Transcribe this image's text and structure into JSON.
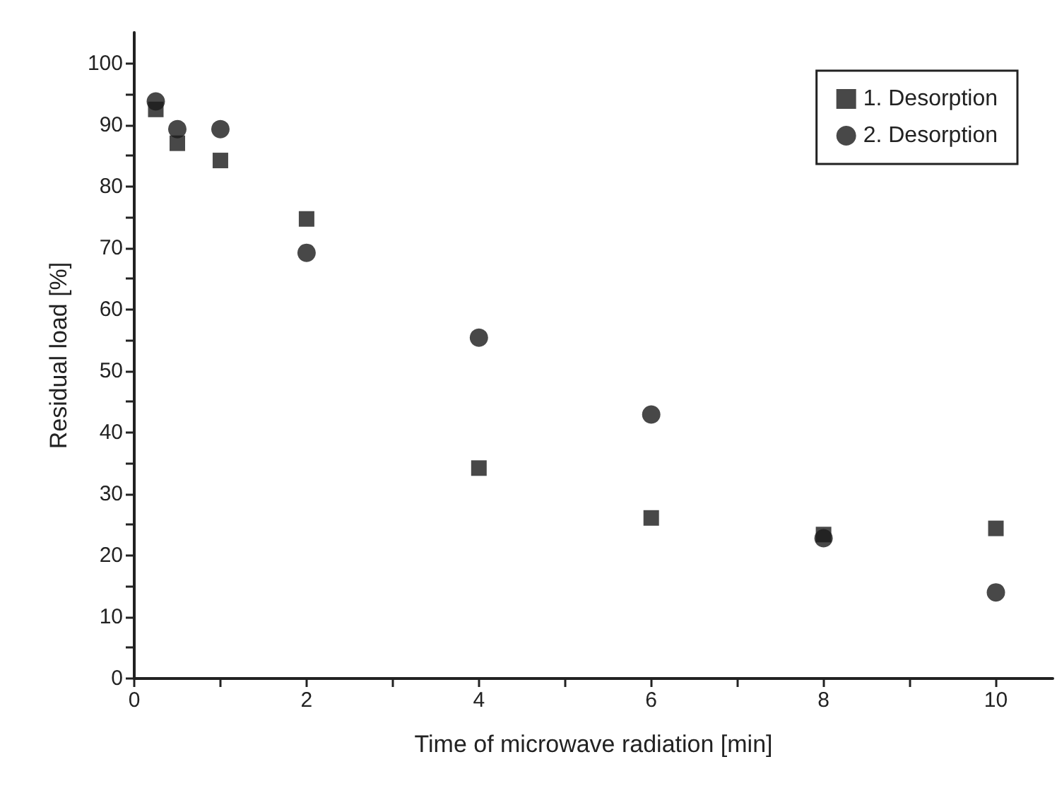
{
  "chart_data": {
    "type": "scatter",
    "xlabel": "Time of microwave radiation [min]",
    "ylabel": "Residual load [%]",
    "x": [
      0.25,
      0.5,
      1,
      2,
      4,
      6,
      8,
      10
    ],
    "series": [
      {
        "name": "1. Desorption",
        "color": "#1a1a1a",
        "marker": "square",
        "values": [
          92.5,
          87,
          84.2,
          74.7,
          34.2,
          26.1,
          23.4,
          24.4
        ]
      },
      {
        "name": "2. Desorption",
        "color": "#1a1a1a",
        "marker": "circle",
        "values": [
          93.8,
          89.3,
          89.3,
          69.2,
          55.4,
          42.9,
          22.8,
          14
        ]
      }
    ],
    "xlim": [
      0,
      10.66
    ],
    "ylim": [
      0,
      105
    ],
    "xticks": [
      0,
      {
        "value": 1,
        "label": null
      },
      2,
      {
        "value": 3,
        "label": null
      },
      4,
      {
        "value": 5,
        "label": null
      },
      6,
      {
        "value": 7,
        "label": null
      },
      8,
      {
        "value": 9,
        "label": null
      },
      10
    ],
    "yticks": [
      0,
      {
        "value": 5,
        "label": null
      },
      10,
      {
        "value": 15,
        "label": null
      },
      20,
      {
        "value": 25,
        "label": null
      },
      30,
      {
        "value": 35,
        "label": null
      },
      40,
      {
        "value": 45,
        "label": null
      },
      50,
      {
        "value": 55,
        "label": null
      },
      60,
      {
        "value": 65,
        "label": null
      },
      70,
      {
        "value": 75,
        "label": null
      },
      80,
      {
        "value": 85,
        "label": null
      },
      90,
      {
        "value": 95,
        "label": null
      },
      100
    ],
    "legend": "top right",
    "grid": false
  }
}
